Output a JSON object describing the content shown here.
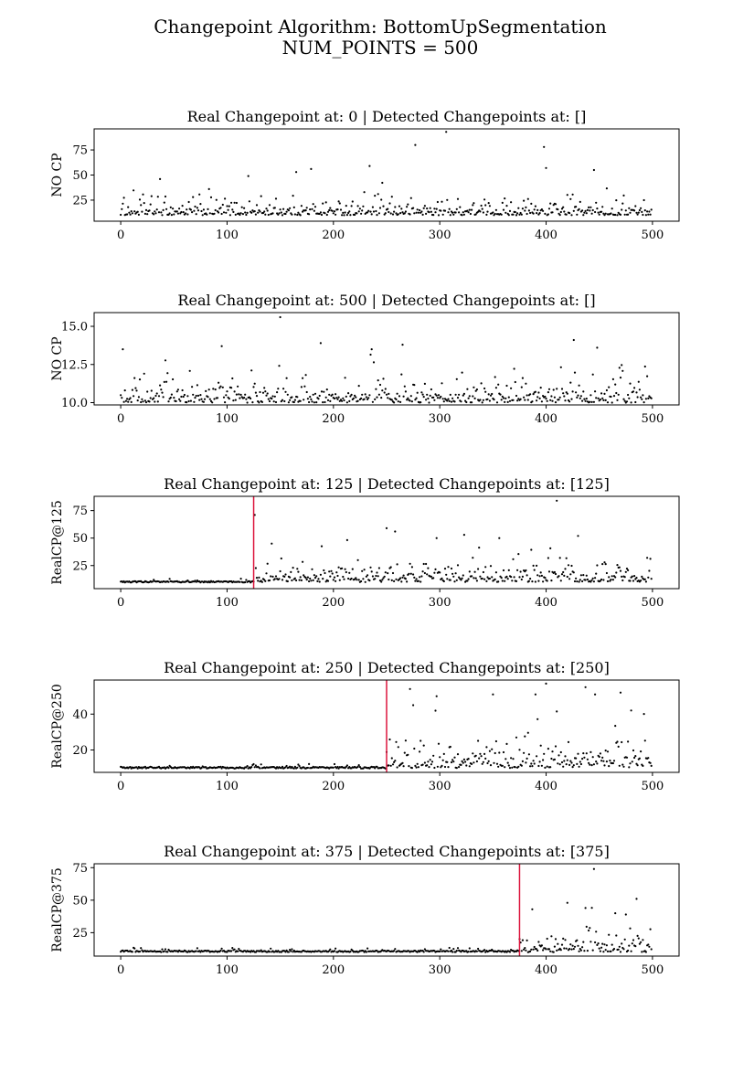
{
  "figure": {
    "title_line1": "Changepoint Algorithm: BottomUpSegmentation",
    "title_line2": "NUM_POINTS = 500"
  },
  "chart_data": [
    {
      "type": "scatter",
      "title": "Real Changepoint at: 0 | Detected Changepoints at: []",
      "ylabel": "NO CP",
      "xlabel": "",
      "xlim": [
        -25,
        525
      ],
      "ylim": [
        4,
        96
      ],
      "xticks": [
        0,
        100,
        200,
        300,
        400,
        500
      ],
      "yticks": [
        25,
        50,
        75
      ],
      "ytick_labels": [
        "25",
        "50",
        "75"
      ],
      "changepoints": [],
      "grid": false,
      "regimes": [
        {
          "start": 0,
          "end": 499,
          "kind": "exp",
          "base": 10,
          "scale": 9,
          "max": 58,
          "scatter": 0
        }
      ],
      "outliers": [
        [
          277,
          80
        ],
        [
          306,
          93
        ],
        [
          398,
          78
        ],
        [
          234,
          59
        ],
        [
          165,
          53
        ],
        [
          179,
          56
        ],
        [
          400,
          57
        ],
        [
          445,
          55
        ],
        [
          120,
          49
        ],
        [
          37,
          46
        ]
      ]
    },
    {
      "type": "scatter",
      "title": "Real Changepoint at: 500 | Detected Changepoints at: []",
      "ylabel": "NO CP",
      "xlabel": "",
      "xlim": [
        -25,
        525
      ],
      "ylim": [
        9.85,
        15.9
      ],
      "xticks": [
        0,
        100,
        200,
        300,
        400,
        500
      ],
      "yticks": [
        10.0,
        12.5,
        15.0
      ],
      "ytick_labels": [
        "10.0",
        "12.5",
        "15.0"
      ],
      "changepoints": [],
      "grid": false,
      "regimes": [
        {
          "start": 0,
          "end": 499,
          "kind": "exp",
          "base": 10,
          "scale": 0.9,
          "max": 13.6,
          "scatter": 0
        }
      ],
      "outliers": [
        [
          150,
          15.6
        ],
        [
          426,
          14.1
        ],
        [
          188,
          13.9
        ],
        [
          95,
          13.7
        ],
        [
          448,
          13.6
        ],
        [
          236,
          13.5
        ],
        [
          2,
          13.5
        ],
        [
          265,
          13.8
        ]
      ]
    },
    {
      "type": "scatter",
      "title": "Real Changepoint at: 125 | Detected Changepoints at: [125]",
      "ylabel": "RealCP@125",
      "xlabel": "",
      "xlim": [
        -25,
        525
      ],
      "ylim": [
        4,
        88
      ],
      "xticks": [
        0,
        100,
        200,
        300,
        400,
        500
      ],
      "yticks": [
        25,
        50,
        75
      ],
      "ytick_labels": [
        "25",
        "50",
        "75"
      ],
      "changepoints": [
        125
      ],
      "grid": false,
      "regimes": [
        {
          "start": 0,
          "end": 124,
          "kind": "flat",
          "base": 10,
          "scale": 1.2,
          "max": 17
        },
        {
          "start": 125,
          "end": 499,
          "kind": "exp",
          "base": 10,
          "scale": 11,
          "max": 52
        }
      ],
      "outliers": [
        [
          126,
          71
        ],
        [
          410,
          84
        ],
        [
          250,
          59
        ],
        [
          258,
          56
        ],
        [
          323,
          53
        ],
        [
          430,
          52
        ],
        [
          356,
          50
        ],
        [
          297,
          50
        ],
        [
          142,
          45
        ]
      ]
    },
    {
      "type": "scatter",
      "title": "Real Changepoint at: 250 | Detected Changepoints at: [250]",
      "ylabel": "RealCP@250",
      "xlabel": "",
      "xlim": [
        -25,
        525
      ],
      "ylim": [
        7.5,
        59
      ],
      "xticks": [
        0,
        100,
        200,
        300,
        400,
        500
      ],
      "yticks": [
        20,
        40
      ],
      "ytick_labels": [
        "20",
        "40"
      ],
      "changepoints": [
        250
      ],
      "grid": false,
      "regimes": [
        {
          "start": 0,
          "end": 249,
          "kind": "flat",
          "base": 10,
          "scale": 1.0,
          "max": 15
        },
        {
          "start": 250,
          "end": 499,
          "kind": "exp",
          "base": 10,
          "scale": 9,
          "max": 44
        }
      ],
      "outliers": [
        [
          400,
          57
        ],
        [
          272,
          54
        ],
        [
          437,
          55
        ],
        [
          275,
          45
        ],
        [
          297,
          50
        ],
        [
          350,
          51
        ],
        [
          390,
          51
        ],
        [
          470,
          52
        ],
        [
          446,
          51
        ],
        [
          480,
          42
        ]
      ]
    },
    {
      "type": "scatter",
      "title": "Real Changepoint at: 375 | Detected Changepoints at: [375]",
      "ylabel": "RealCP@375",
      "xlabel": "",
      "xlim": [
        -25,
        525
      ],
      "ylim": [
        7,
        78
      ],
      "xticks": [
        0,
        100,
        200,
        300,
        400,
        500
      ],
      "yticks": [
        25,
        50,
        75
      ],
      "ytick_labels": [
        "25",
        "50",
        "75"
      ],
      "changepoints": [
        375
      ],
      "grid": false,
      "regimes": [
        {
          "start": 0,
          "end": 374,
          "kind": "flat",
          "base": 10.5,
          "scale": 1.2,
          "max": 14
        },
        {
          "start": 375,
          "end": 499,
          "kind": "exp",
          "base": 10,
          "scale": 11,
          "max": 45
        }
      ],
      "outliers": [
        [
          445,
          74
        ],
        [
          485,
          51
        ],
        [
          420,
          48
        ],
        [
          437,
          44
        ],
        [
          387,
          43
        ],
        [
          465,
          40
        ],
        [
          475,
          39
        ]
      ]
    }
  ],
  "colors": {
    "points": "#000000",
    "changepoint_line": "#dc143c",
    "axes": "#000000"
  }
}
